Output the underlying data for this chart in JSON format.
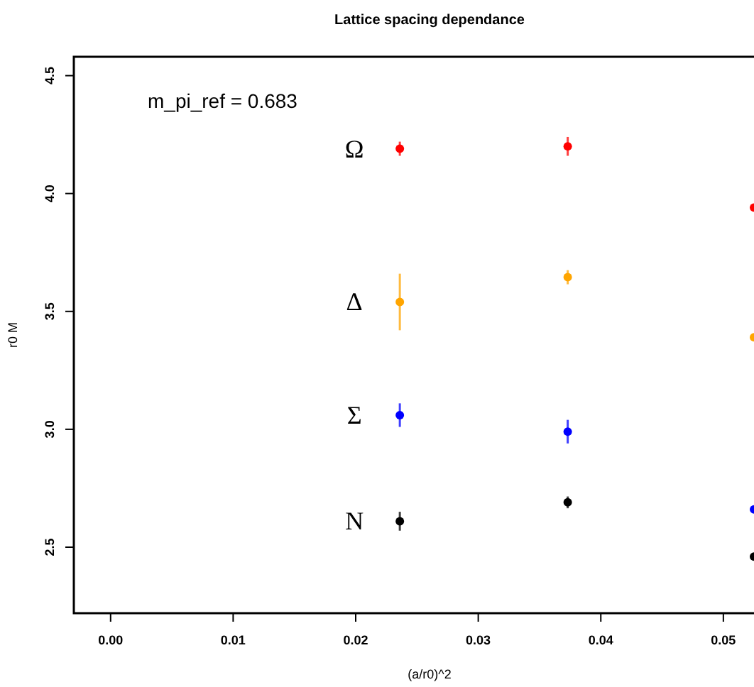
{
  "chart_data": {
    "type": "scatter",
    "title": "Lattice spacing dependance",
    "xlabel": "(a/r0)^2",
    "ylabel": "r0 M",
    "xlim": [
      -0.003,
      0.0525
    ],
    "xticks": [
      {
        "value": 0,
        "label": "0.00"
      },
      {
        "value": 0.01,
        "label": "0.01"
      },
      {
        "value": 0.02,
        "label": "0.02"
      },
      {
        "value": 0.03,
        "label": "0.03"
      },
      {
        "value": 0.04,
        "label": "0.04"
      },
      {
        "value": 0.05,
        "label": "0.05"
      }
    ],
    "ylim": [
      2.22,
      4.58
    ],
    "yticks": [
      2.5,
      {
        "value": 3,
        "label": "3.0"
      },
      3.5,
      {
        "value": 4,
        "label": "4.0"
      },
      4.5
    ],
    "x": [
      0.0236,
      0.0373,
      0.0525
    ],
    "marker": "circle",
    "grid": false,
    "annotations": [
      "m_pi_ref = 0.683"
    ],
    "series": [
      {
        "name": "Ω",
        "color": "#ff0000",
        "values": [
          4.19,
          4.2,
          3.94
        ],
        "errors": [
          0.03,
          0.04,
          null
        ]
      },
      {
        "name": "Δ",
        "color": "#ffa500",
        "values": [
          3.54,
          3.645,
          3.39
        ],
        "errors": [
          0.12,
          0.03,
          null
        ]
      },
      {
        "name": "Σ",
        "color": "#0000ff",
        "values": [
          3.06,
          2.99,
          2.66
        ],
        "errors": [
          0.05,
          0.05,
          null
        ]
      },
      {
        "name": "N",
        "color": "#000000",
        "values": [
          2.61,
          2.69,
          2.46
        ],
        "errors": [
          0.04,
          0.025,
          null
        ]
      }
    ]
  }
}
